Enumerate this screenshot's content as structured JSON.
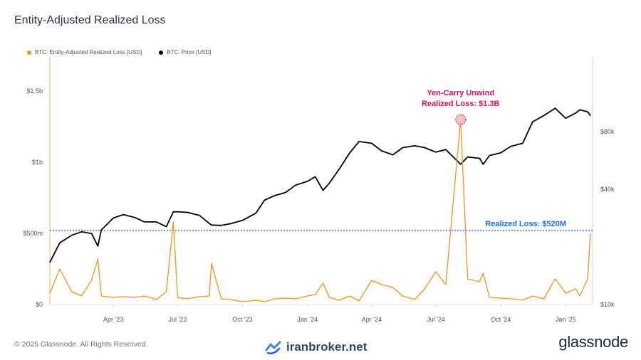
{
  "title": "Entity-Adjusted Realized Loss",
  "legend": [
    {
      "name": "BTC: Entity-Adjusted Realized Loss [USD]",
      "color": "#f7931a"
    },
    {
      "name": "BTC: Price [USD]",
      "color": "#000000"
    }
  ],
  "footer": "© 2025 Glassnode. All Rights Reserved.",
  "watermark": "iranbroker.net",
  "brand": "glassnode",
  "annotations": {
    "peak_line1": "Yen-Carry Unwind",
    "peak_line2": "Realized Loss: $1.3B",
    "threshold": "Realized Loss: $520M"
  },
  "chart_data": {
    "type": "line",
    "x": [
      "2023-01-01",
      "2023-01-15",
      "2023-02-01",
      "2023-02-15",
      "2023-03-01",
      "2023-03-10",
      "2023-03-15",
      "2023-04-01",
      "2023-04-15",
      "2023-05-01",
      "2023-05-15",
      "2023-06-01",
      "2023-06-15",
      "2023-06-25",
      "2023-07-01",
      "2023-07-15",
      "2023-08-01",
      "2023-08-15",
      "2023-08-18",
      "2023-09-01",
      "2023-09-15",
      "2023-10-01",
      "2023-10-20",
      "2023-11-01",
      "2023-11-15",
      "2023-12-01",
      "2023-12-15",
      "2024-01-01",
      "2024-01-12",
      "2024-01-23",
      "2024-02-01",
      "2024-02-15",
      "2024-03-01",
      "2024-03-14",
      "2024-04-01",
      "2024-04-15",
      "2024-05-01",
      "2024-05-15",
      "2024-06-01",
      "2024-06-15",
      "2024-07-01",
      "2024-07-15",
      "2024-08-05",
      "2024-08-15",
      "2024-09-01",
      "2024-09-06",
      "2024-09-15",
      "2024-10-01",
      "2024-10-15",
      "2024-11-01",
      "2024-11-15",
      "2024-12-01",
      "2024-12-17",
      "2025-01-01",
      "2025-01-15",
      "2025-01-21",
      "2025-02-01",
      "2025-02-05"
    ],
    "series": [
      {
        "name": "BTC: Price [USD]",
        "axis": "right",
        "color": "#000000",
        "values": [
          16600,
          21000,
          23000,
          24000,
          23500,
          20200,
          24500,
          28300,
          29500,
          28500,
          27000,
          27000,
          25500,
          30500,
          30500,
          30300,
          29200,
          26500,
          26000,
          25900,
          26500,
          27500,
          30000,
          35000,
          37000,
          38500,
          42000,
          44000,
          46500,
          39500,
          43000,
          51000,
          62000,
          71000,
          69500,
          63500,
          60500,
          66000,
          67500,
          66000,
          62500,
          64500,
          54000,
          59000,
          58000,
          54000,
          60000,
          62000,
          67000,
          69500,
          90000,
          97000,
          106000,
          94000,
          100000,
          104000,
          101500,
          97000
        ]
      },
      {
        "name": "BTC: Entity-Adjusted Realized Loss [USD]",
        "axis": "left",
        "color": "#f7931a",
        "values": [
          80000000,
          250000000,
          90000000,
          60000000,
          170000000,
          320000000,
          60000000,
          50000000,
          55000000,
          50000000,
          60000000,
          35000000,
          90000000,
          580000000,
          50000000,
          40000000,
          55000000,
          60000000,
          290000000,
          40000000,
          35000000,
          20000000,
          30000000,
          20000000,
          40000000,
          45000000,
          40000000,
          60000000,
          70000000,
          150000000,
          50000000,
          30000000,
          60000000,
          25000000,
          170000000,
          140000000,
          120000000,
          60000000,
          35000000,
          110000000,
          230000000,
          140000000,
          1300000000,
          180000000,
          160000000,
          220000000,
          50000000,
          45000000,
          40000000,
          30000000,
          60000000,
          40000000,
          180000000,
          80000000,
          110000000,
          60000000,
          180000000,
          500000000
        ]
      }
    ],
    "ylim_left": [
      0,
      1500000000
    ],
    "ylim_right_ticks": [
      10000,
      40000,
      80000
    ],
    "threshold": 520000000,
    "left_ticks": [
      "$0",
      "$500m",
      "$1b",
      "$1.5b"
    ],
    "right_ticks": [
      "$10k",
      "$40k",
      "$80k"
    ],
    "x_ticks": [
      "Apr '23",
      "Jul '23",
      "Oct '23",
      "Jan '24",
      "Apr '24",
      "Jul '24",
      "Oct '24",
      "Jan '25"
    ],
    "grid": true,
    "legend_placement": "top-left"
  }
}
